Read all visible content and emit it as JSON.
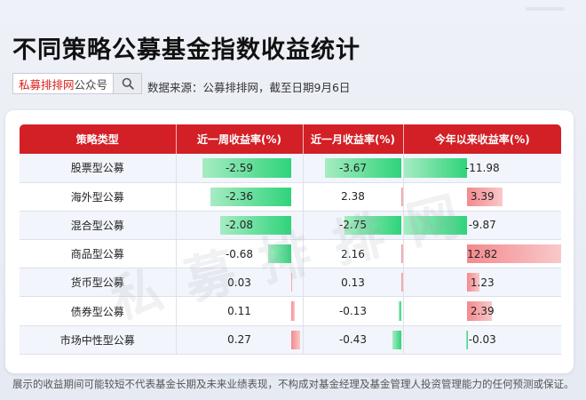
{
  "title": "不同策略公募基金指数收益统计",
  "brand": {
    "red_text": "私募排排网",
    "gray_text": "公众号"
  },
  "source_text": "数据来源：公募排排网，截至日期9月6日",
  "watermark": "私募排排网",
  "disclaimer": "展示的收益期间可能较短不代表基金长期及未来业绩表现，不构成对基金经理及基金管理人投资管理能力的任何预测或保证。",
  "colors": {
    "header_red": "#d31f26",
    "negative_green": "#2fd37a",
    "positive_red": "#f48a8e"
  },
  "chart_data": {
    "type": "table",
    "columns": [
      "策略类型",
      "近一周收益率(%)",
      "近一月收益率(%)",
      "今年以来收益率(%)"
    ],
    "categories": [
      "股票型公募",
      "海外型公募",
      "混合型公募",
      "商品型公募",
      "货币型公募",
      "债券型公募",
      "市场中性型公募"
    ],
    "series": [
      {
        "name": "近一周收益率(%)",
        "values": [
          -2.59,
          -2.36,
          -2.08,
          -0.68,
          0.03,
          0.11,
          0.27
        ]
      },
      {
        "name": "近一月收益率(%)",
        "values": [
          -3.67,
          2.38,
          -2.75,
          2.16,
          0.13,
          -0.13,
          -0.43
        ]
      },
      {
        "name": "今年以来收益率(%)",
        "values": [
          -11.98,
          3.39,
          -9.87,
          12.82,
          1.23,
          2.39,
          -0.03
        ]
      }
    ]
  }
}
